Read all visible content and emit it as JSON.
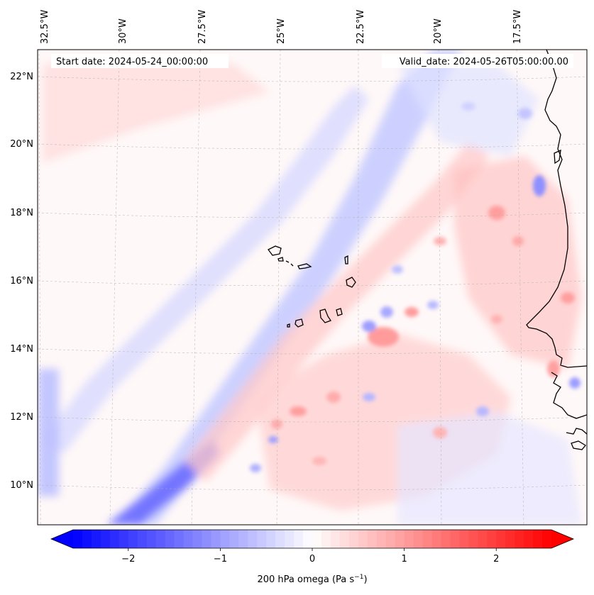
{
  "map": {
    "type": "contour",
    "variable_label": "200 hPa omega (Pa s",
    "variable_label_exp": "−1",
    "variable_label_close": ")",
    "start_label": "Start date: 2024-05-24_00:00:00",
    "valid_label": "Valid_date: 2024-05-26T05:00:00.00",
    "lon_ticks": [
      "32.5°W",
      "30°W",
      "27.5°W",
      "25°W",
      "22.5°W",
      "20°W",
      "17.5°W"
    ],
    "lat_ticks": [
      "22°N",
      "20°N",
      "18°N",
      "16°N",
      "14°N",
      "12°N",
      "10°N"
    ],
    "colorbar": {
      "ticks": [
        "−2",
        "−1",
        "0",
        "1",
        "2"
      ],
      "tick_values": [
        -2,
        -1,
        0,
        1,
        2
      ],
      "range": [
        -2.6,
        2.6
      ],
      "colormap": "bwr",
      "low_color": "#0000ff",
      "mid_color": "#ffffff",
      "high_color": "#ff0000"
    }
  }
}
